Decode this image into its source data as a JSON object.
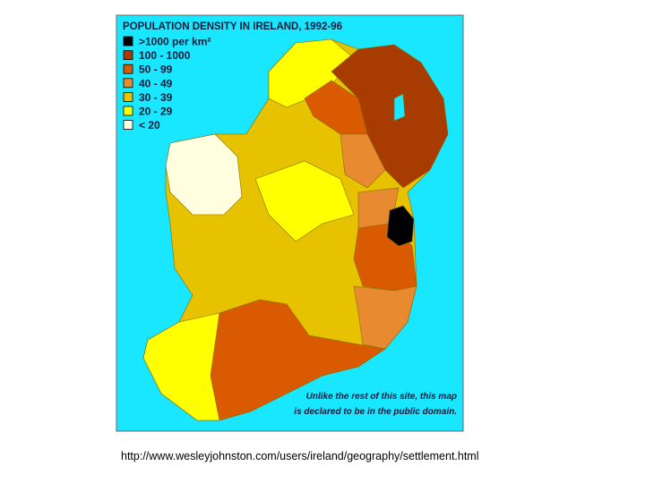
{
  "title": "POPULATION DENSITY IN IRELAND, 1992-96",
  "legend": [
    {
      "label": ">1000 per km²",
      "color": "#000000"
    },
    {
      "label": "100 - 1000",
      "color": "#a83c00"
    },
    {
      "label": "50 - 99",
      "color": "#d95a00"
    },
    {
      "label": "40 - 49",
      "color": "#e88a30"
    },
    {
      "label": "30 - 39",
      "color": "#e6c200"
    },
    {
      "label": "20 - 29",
      "color": "#ffff00"
    },
    {
      "label": "< 20",
      "color": "#ffffe0"
    }
  ],
  "note": [
    "Unlike the rest of this site, this map",
    "is declared to be in the public domain."
  ],
  "caption": "http://www.wesleyjohnston.com/users/ireland/geography/settlement.html"
}
